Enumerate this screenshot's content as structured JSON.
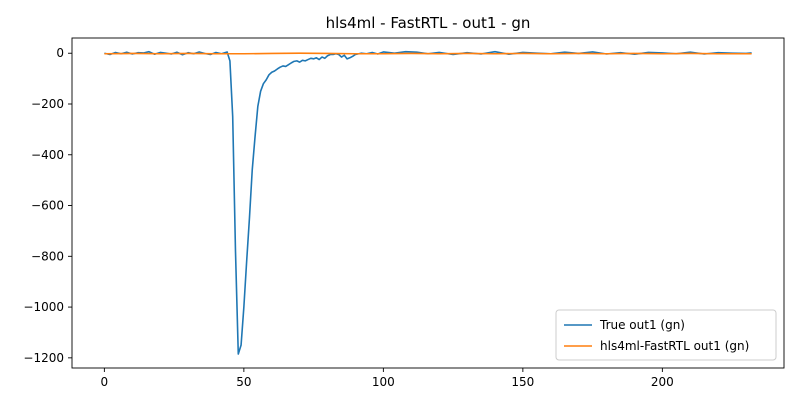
{
  "chart_data": {
    "type": "line",
    "title": "hls4ml - FastRTL - out1 - gn",
    "xlabel": "",
    "ylabel": "",
    "xlim": [
      -11.6,
      243.6
    ],
    "ylim": [
      -1240,
      60
    ],
    "x_ticks": [
      0,
      50,
      100,
      150,
      200
    ],
    "x_tick_labels": [
      "0",
      "50",
      "100",
      "150",
      "200"
    ],
    "y_ticks": [
      0,
      -200,
      -400,
      -600,
      -800,
      -1000,
      -1200
    ],
    "y_tick_labels": [
      "0",
      "−200",
      "−400",
      "−600",
      "−800",
      "−1000",
      "−1200"
    ],
    "grid": false,
    "legend_position": "lower right",
    "series": [
      {
        "name": "True out1 (gn)",
        "color": "#1f77b4",
        "x": [
          0,
          2,
          4,
          6,
          8,
          10,
          12,
          14,
          16,
          18,
          20,
          22,
          24,
          26,
          28,
          30,
          32,
          34,
          36,
          38,
          40,
          42,
          44,
          45,
          46,
          47,
          48,
          49,
          50,
          51,
          52,
          53,
          54,
          55,
          56,
          57,
          58,
          59,
          60,
          61,
          62,
          63,
          64,
          65,
          66,
          67,
          68,
          69,
          70,
          71,
          72,
          73,
          74,
          75,
          76,
          77,
          78,
          79,
          80,
          81,
          82,
          83,
          84,
          85,
          86,
          87,
          88,
          89,
          90,
          92,
          94,
          96,
          98,
          100,
          104,
          108,
          112,
          116,
          120,
          125,
          130,
          135,
          140,
          145,
          150,
          155,
          160,
          165,
          170,
          175,
          180,
          185,
          190,
          195,
          200,
          205,
          210,
          215,
          220,
          225,
          230,
          232
        ],
        "y": [
          0,
          -5,
          3,
          -2,
          4,
          -3,
          2,
          1,
          6,
          -4,
          3,
          0,
          -3,
          4,
          -6,
          2,
          -2,
          5,
          -1,
          -5,
          3,
          -2,
          5,
          -30,
          -250,
          -780,
          -1185,
          -1150,
          -1000,
          -820,
          -650,
          -460,
          -330,
          -210,
          -150,
          -120,
          -105,
          -85,
          -75,
          -70,
          -62,
          -55,
          -50,
          -52,
          -45,
          -38,
          -32,
          -30,
          -35,
          -28,
          -30,
          -25,
          -20,
          -22,
          -18,
          -25,
          -15,
          -20,
          -10,
          -5,
          -5,
          -2,
          -5,
          -15,
          -8,
          -22,
          -18,
          -12,
          -5,
          0,
          -2,
          3,
          -3,
          5,
          0,
          6,
          4,
          -2,
          3,
          -5,
          2,
          -3,
          6,
          -4,
          3,
          0,
          -2,
          4,
          -1,
          5,
          -3,
          2,
          -4,
          3,
          1,
          -2,
          4,
          -3,
          2,
          0,
          -1,
          1
        ]
      },
      {
        "name": "hls4ml-FastRTL out1 (gn)",
        "color": "#ff7f0e",
        "x": [
          0,
          10,
          20,
          30,
          40,
          50,
          60,
          70,
          80,
          90,
          100,
          110,
          120,
          130,
          140,
          150,
          160,
          170,
          180,
          190,
          200,
          210,
          220,
          232
        ],
        "y": [
          -2,
          -1,
          -2,
          -1,
          -2,
          -2,
          -1,
          0,
          -1,
          -2,
          -2,
          -1,
          -2,
          -1,
          -2,
          -1,
          -2,
          -1,
          -2,
          -1,
          -2,
          -1,
          -2,
          -2
        ]
      }
    ]
  }
}
